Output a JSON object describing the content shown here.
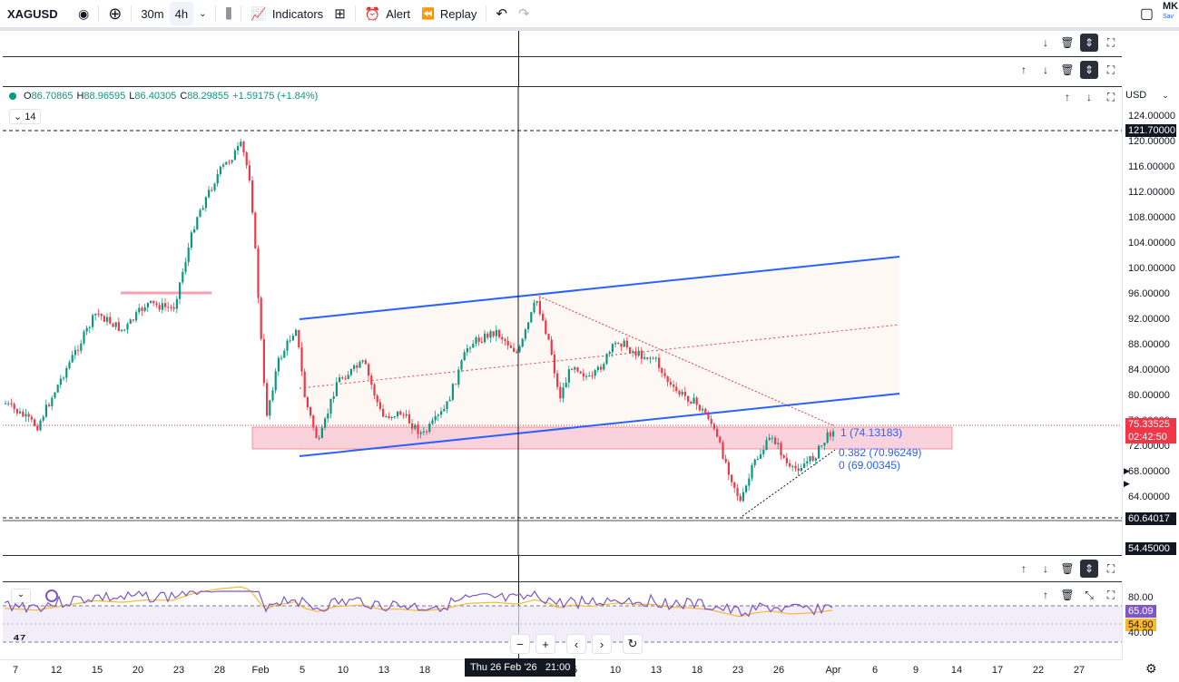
{
  "toolbar": {
    "symbol": "XAGUSD",
    "interval_30m": "30m",
    "interval_4h": "4h",
    "indicators": "Indicators",
    "alert": "Alert",
    "replay": "Replay",
    "user_initials": "MK",
    "user_sub": "Sav"
  },
  "legend": {
    "open_label": "O",
    "open": "86.70865",
    "high_label": "H",
    "high": "88.96595",
    "low_label": "L",
    "low": "86.40305",
    "close_label": "C",
    "close": "88.29855",
    "change": "+1.59175 (+1.84%)",
    "indicator_length": "14"
  },
  "price_scale": {
    "currency": "USD",
    "ticks": [
      "124.00000",
      "120.00000",
      "116.00000",
      "112.00000",
      "108.00000",
      "104.00000",
      "100.00000",
      "96.00000",
      "92.00000",
      "88.00000",
      "84.00000",
      "80.00000",
      "76.00000",
      "72.00000",
      "68.00000",
      "64.00000"
    ],
    "tag_high": "121.70000",
    "tag_current": "75.33525",
    "tag_countdown": "02:42:50",
    "tag_low": "60.64017",
    "tag_bottom": "54.45000"
  },
  "rsi_scale": {
    "tick_80": "80.00",
    "tick_40": "40.00",
    "rsi_value": "65.09",
    "ma_value": "54.90"
  },
  "fib": {
    "level_1": "1 (74.13183)",
    "level_0382": "0.382 (70.96249)",
    "level_0": "0 (69.00345)"
  },
  "time_axis": {
    "labels": [
      "7",
      "12",
      "15",
      "20",
      "23",
      "28",
      "Feb",
      "5",
      "10",
      "13",
      "18",
      "5",
      "10",
      "13",
      "18",
      "23",
      "26",
      "Apr",
      "6",
      "9",
      "14",
      "17",
      "22",
      "27"
    ],
    "crosshair": "Thu 26 Feb '26   21:00"
  },
  "colors": {
    "up": "#089981",
    "down": "#f23645",
    "channel": "#2962ff",
    "zone": "#f8c8d6",
    "rsi": "#7e57c2",
    "rsi_ma": "#f7b92f"
  }
}
